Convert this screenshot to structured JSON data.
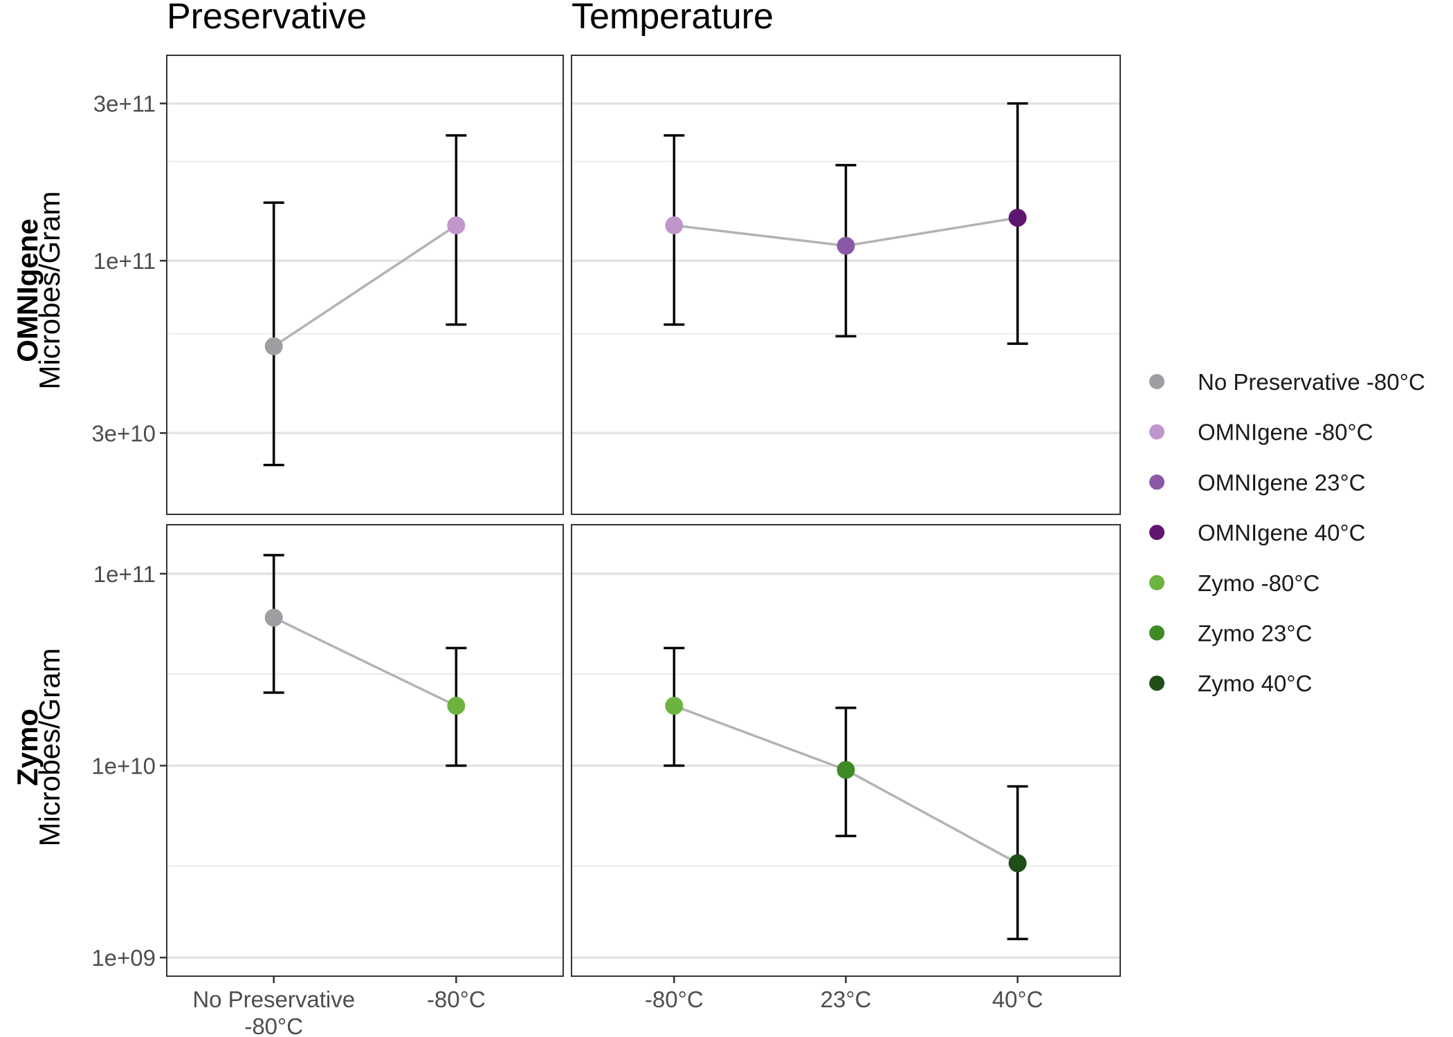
{
  "chart_data": {
    "type": "scatter",
    "facet_columns": [
      "Preservative",
      "Temperature"
    ],
    "facet_rows": [
      {
        "name": "OMNIgene",
        "ylabel": "Microbes/Gram"
      },
      {
        "name": "Zymo",
        "ylabel": "Microbes/Gram"
      }
    ],
    "y_scale": "log10",
    "grid": true,
    "legend_position": "right",
    "legend": [
      {
        "label": "No Preservative -80°C",
        "color": "#9e9ea3"
      },
      {
        "label": "OMNIgene -80°C",
        "color": "#c096cc"
      },
      {
        "label": "OMNIgene 23°C",
        "color": "#8b5aa6"
      },
      {
        "label": "OMNIgene 40°C",
        "color": "#5e1670"
      },
      {
        "label": "Zymo -80°C",
        "color": "#6cb33f"
      },
      {
        "label": "Zymo 23°C",
        "color": "#3f8a25"
      },
      {
        "label": "Zymo 40°C",
        "color": "#1f4e17"
      }
    ],
    "line_color": "#b3b3b3",
    "panels": [
      {
        "row": "OMNIgene",
        "column": "Preservative",
        "ylim": [
          17000000000,
          420000000000
        ],
        "yticks": [
          {
            "value": 30000000000,
            "label": "3e+10"
          },
          {
            "value": 100000000000,
            "label": "1e+11"
          },
          {
            "value": 300000000000,
            "label": "3e+11"
          }
        ],
        "yminor": [
          60000000000,
          200000000000
        ],
        "categories": [
          "No Preservative\n-80°C",
          "-80°C"
        ],
        "points": [
          {
            "x": "No Preservative\n-80°C",
            "y": 55000000000,
            "ymin": 24000000000,
            "ymax": 150000000000,
            "group": "No Preservative -80°C"
          },
          {
            "x": "-80°C",
            "y": 128000000000,
            "ymin": 64000000000,
            "ymax": 240000000000,
            "group": "OMNIgene -80°C"
          }
        ]
      },
      {
        "row": "OMNIgene",
        "column": "Temperature",
        "ylim": [
          17000000000,
          420000000000
        ],
        "yticks": [
          {
            "value": 30000000000,
            "label": "3e+10"
          },
          {
            "value": 100000000000,
            "label": "1e+11"
          },
          {
            "value": 300000000000,
            "label": "3e+11"
          }
        ],
        "yminor": [
          60000000000,
          200000000000
        ],
        "categories": [
          "-80°C",
          "23°C",
          "40°C"
        ],
        "points": [
          {
            "x": "-80°C",
            "y": 128000000000,
            "ymin": 64000000000,
            "ymax": 240000000000,
            "group": "OMNIgene -80°C"
          },
          {
            "x": "23°C",
            "y": 111000000000,
            "ymin": 59000000000,
            "ymax": 195000000000,
            "group": "OMNIgene 23°C"
          },
          {
            "x": "40°C",
            "y": 135000000000,
            "ymin": 56000000000,
            "ymax": 300000000000,
            "group": "OMNIgene 40°C"
          }
        ]
      },
      {
        "row": "Zymo",
        "column": "Preservative",
        "ylim": [
          800000000,
          180000000000
        ],
        "yticks": [
          {
            "value": 1000000000,
            "label": "1e+09"
          },
          {
            "value": 10000000000,
            "label": "1e+10"
          },
          {
            "value": 100000000000,
            "label": "1e+11"
          }
        ],
        "yminor": [
          3000000000,
          30000000000
        ],
        "categories": [
          "No Preservative\n-80°C",
          "-80°C"
        ],
        "points": [
          {
            "x": "No Preservative\n-80°C",
            "y": 59000000000,
            "ymin": 24000000000,
            "ymax": 125000000000,
            "group": "No Preservative -80°C"
          },
          {
            "x": "-80°C",
            "y": 20500000000,
            "ymin": 10000000000,
            "ymax": 41000000000,
            "group": "Zymo -80°C"
          }
        ]
      },
      {
        "row": "Zymo",
        "column": "Temperature",
        "ylim": [
          800000000,
          180000000000
        ],
        "yticks": [
          {
            "value": 1000000000,
            "label": "1e+09"
          },
          {
            "value": 10000000000,
            "label": "1e+10"
          },
          {
            "value": 100000000000,
            "label": "1e+11"
          }
        ],
        "yminor": [
          3000000000,
          30000000000
        ],
        "categories": [
          "-80°C",
          "23°C",
          "40°C"
        ],
        "points": [
          {
            "x": "-80°C",
            "y": 20500000000,
            "ymin": 10000000000,
            "ymax": 41000000000,
            "group": "Zymo -80°C"
          },
          {
            "x": "23°C",
            "y": 9500000000,
            "ymin": 4300000000,
            "ymax": 20000000000,
            "group": "Zymo 23°C"
          },
          {
            "x": "40°C",
            "y": 3100000000,
            "ymin": 1250000000,
            "ymax": 7800000000,
            "group": "Zymo 40°C"
          }
        ]
      }
    ]
  }
}
